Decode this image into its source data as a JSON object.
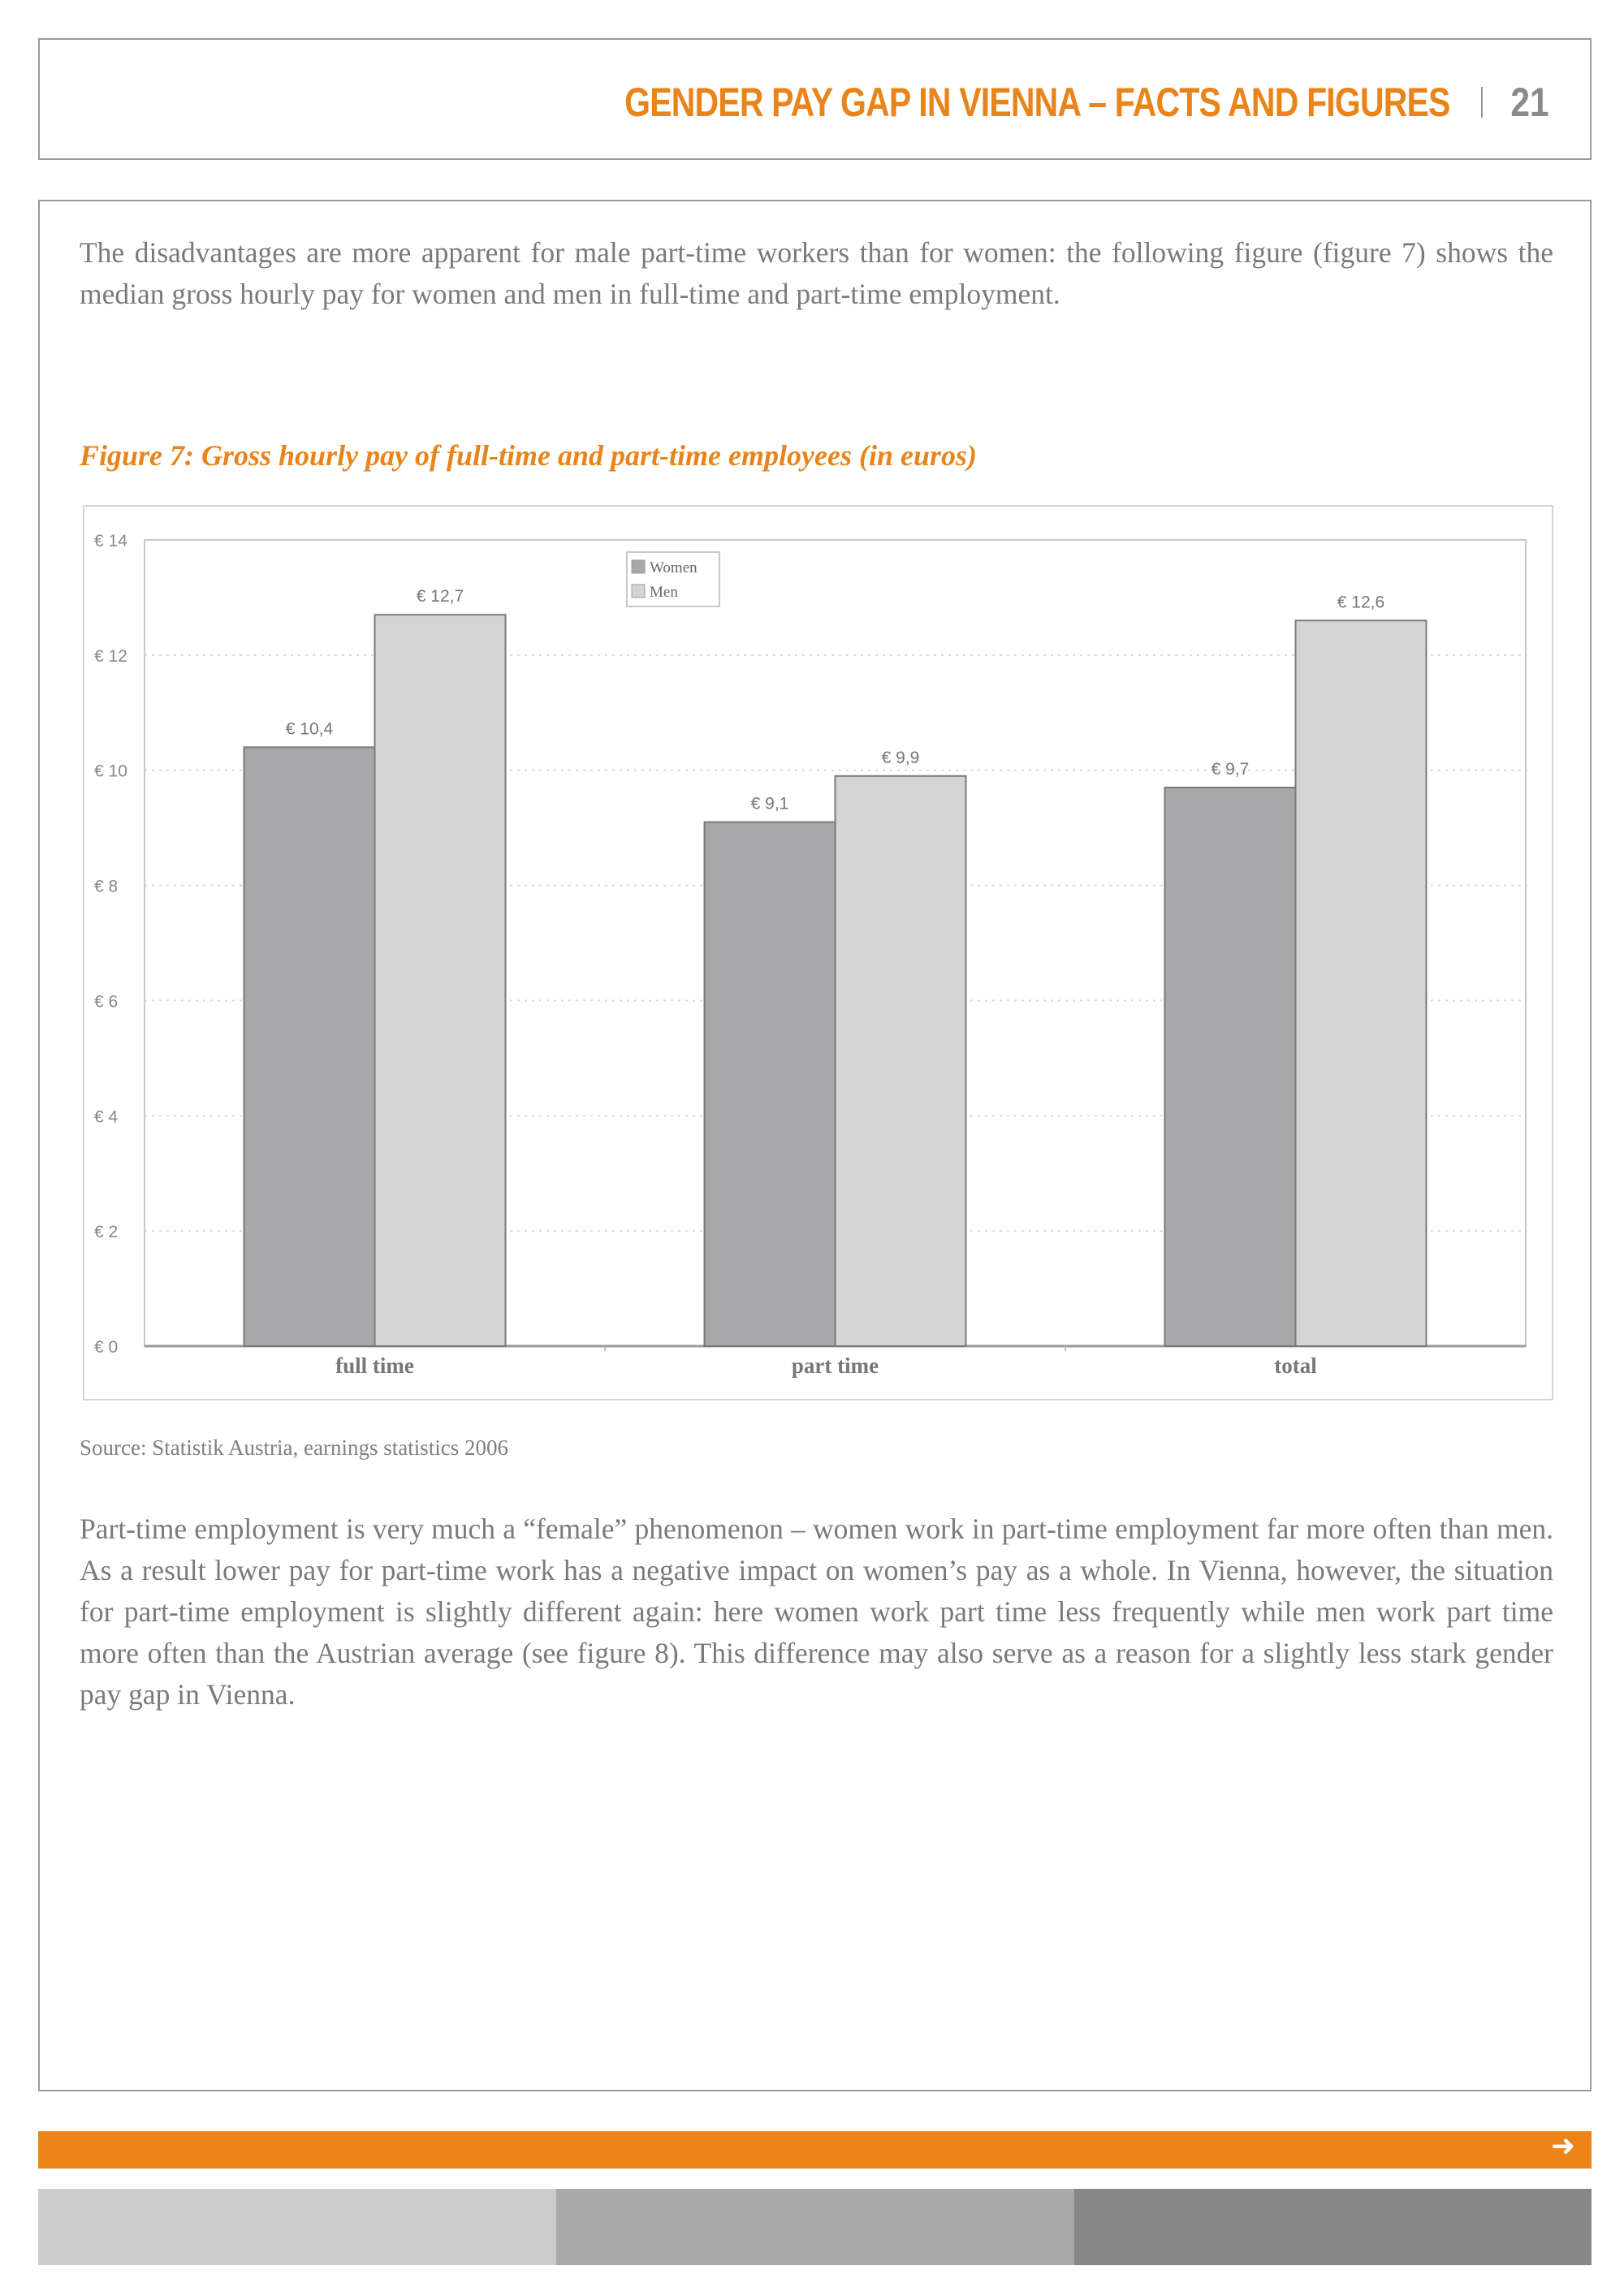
{
  "header": {
    "title": "GENDER PAY GAP IN VIENNA – FACTS AND FIGURES",
    "page_number": "21"
  },
  "body": {
    "paragraph1": "The disadvantages are more apparent for male part-time workers than for women: the following figure (figure 7) shows the median gross hourly pay for women and men in full-time and part-time employment.",
    "figure_caption": "Figure 7: Gross hourly pay of full-time and part-time employees (in euros)",
    "source": "Source: Statistik Austria, earnings statistics 2006",
    "paragraph2": "Part-time employment is very much a “female” phenomenon – women work in part-time employment far more often than men. As a result lower pay for part-time work has a negative impact on women’s pay as a whole. In Vienna, however, the situation for part-time employment is slightly different again: here women work part time less frequently while men work part time more often than the Austrian average (see figure 8). This difference may also serve as a reason for a slightly less stark gender pay gap in Vienna."
  },
  "footer": {
    "arrow_icon": "arrow-right-icon",
    "colors": [
      "#ec8418",
      "#cccccc",
      "#a9a9a9",
      "#878787"
    ]
  },
  "chart_data": {
    "type": "bar",
    "categories": [
      "full time",
      "part time",
      "total"
    ],
    "series": [
      {
        "name": "Women",
        "values": [
          10.4,
          9.1,
          9.7
        ],
        "labels": [
          "€ 10,4",
          "€ 9,1",
          "€ 9,7"
        ],
        "color": "#a8a8aa"
      },
      {
        "name": "Men",
        "values": [
          12.7,
          9.9,
          12.6
        ],
        "labels": [
          "€ 12,7",
          "€ 9,9",
          "€ 12,6"
        ],
        "color": "#d4d4d4"
      }
    ],
    "ylim": [
      0,
      14
    ],
    "yticks": [
      0,
      2,
      4,
      6,
      8,
      10,
      12,
      14
    ],
    "ytick_labels": [
      "€ 0",
      "€ 2",
      "€ 4",
      "€ 6",
      "€ 8",
      "€ 10",
      "€ 12",
      "€ 14"
    ],
    "grid": true,
    "legend": "top-center"
  }
}
